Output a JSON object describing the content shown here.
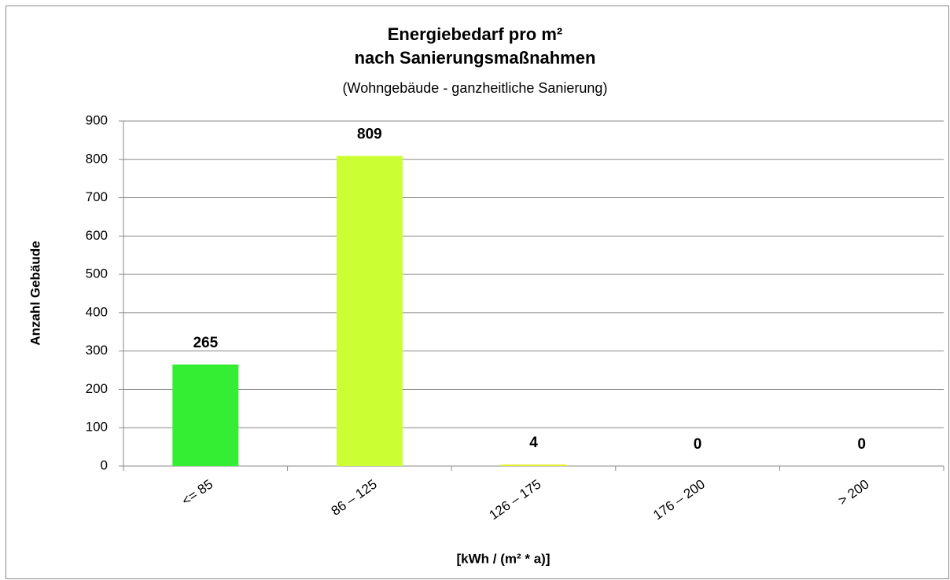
{
  "chart_data": {
    "type": "bar",
    "title": [
      "Energiebedarf pro m²",
      "nach Sanierungsmaßnahmen"
    ],
    "subtitle": "(Wohngebäude - ganzheitliche Sanierung)",
    "x_label": "[kWh / (m² * a)]",
    "y_label": "Anzahl Gebäude",
    "categories": [
      "<= 85",
      "86 – 125",
      "126 – 175",
      "176 – 200",
      "> 200"
    ],
    "values": [
      265,
      809,
      4,
      0,
      0
    ],
    "colors": [
      "#33ee33",
      "#ccff33",
      "#e6f030",
      "#ffcc00",
      "#ff6600"
    ],
    "ylim": [
      0,
      900
    ],
    "yticks": [
      0,
      100,
      200,
      300,
      400,
      500,
      600,
      700,
      800,
      900
    ],
    "grid": true
  }
}
